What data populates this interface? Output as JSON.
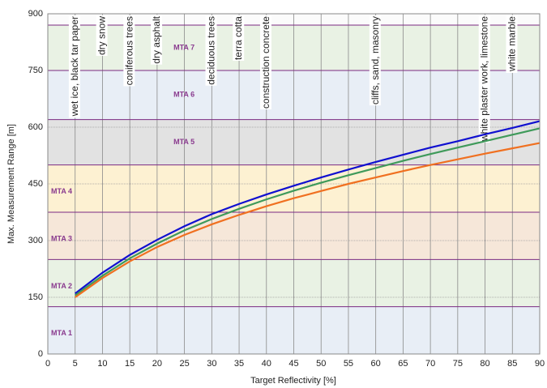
{
  "chart_data": {
    "type": "line",
    "x_label": "Target Reflectivity [%]",
    "y_label": "Max. Measurement Range [m]",
    "x": [
      5,
      10,
      15,
      20,
      25,
      30,
      35,
      40,
      45,
      50,
      55,
      60,
      65,
      70,
      75,
      80,
      85,
      90
    ],
    "series": [
      {
        "color": "#1010d0",
        "values": [
          160,
          215,
          262,
          302,
          338,
          370,
          397,
          422,
          445,
          467,
          488,
          508,
          527,
          546,
          563,
          581,
          598,
          616
        ]
      },
      {
        "color": "#3f9a5a",
        "values": [
          155,
          207,
          253,
          292,
          327,
          357,
          384,
          409,
          432,
          453,
          473,
          492,
          511,
          529,
          546,
          563,
          580,
          597
        ]
      },
      {
        "color": "#f07020",
        "values": [
          150,
          201,
          245,
          283,
          315,
          343,
          368,
          391,
          412,
          431,
          450,
          467,
          484,
          500,
          515,
          530,
          544,
          558
        ]
      }
    ],
    "xlim": [
      0,
      90
    ],
    "ylim": [
      0,
      900
    ],
    "xticks": [
      0,
      5,
      10,
      15,
      20,
      25,
      30,
      35,
      40,
      45,
      50,
      55,
      60,
      65,
      70,
      75,
      80,
      85,
      90
    ],
    "yticks": [
      0,
      150,
      300,
      450,
      600,
      750,
      900
    ],
    "grid": true,
    "zones": [
      {
        "label": "MTA 1",
        "range": [
          0,
          125
        ],
        "color": "#e8eef6"
      },
      {
        "label": "MTA 2",
        "range": [
          125,
          250
        ],
        "color": "#e9f2e4"
      },
      {
        "label": "MTA 3",
        "range": [
          250,
          375
        ],
        "color": "#f6e7d9"
      },
      {
        "label": "MTA 4",
        "range": [
          375,
          500
        ],
        "color": "#fdf1d2"
      },
      {
        "label": "MTA 5",
        "range": [
          500,
          620
        ],
        "color": "#e2e2e2"
      },
      {
        "label": "MTA 6",
        "range": [
          620,
          750
        ],
        "color": "#e8eef6"
      },
      {
        "label": "MTA 7",
        "range": [
          750,
          870
        ],
        "color": "#e9f2e4"
      }
    ],
    "materials": [
      {
        "x": 5,
        "label": "wet  ice, black tar paper"
      },
      {
        "x": 10,
        "label": "dry snow"
      },
      {
        "x": 15,
        "label": "coniferous trees"
      },
      {
        "x": 20,
        "label": "dry asphalt"
      },
      {
        "x": 30,
        "label": "deciduous trees"
      },
      {
        "x": 35,
        "label": "terra cotta"
      },
      {
        "x": 40,
        "label": "construction concrete"
      },
      {
        "x": 60,
        "label": "cliffs, sand, masonry"
      },
      {
        "x": 80,
        "label": "white plaster work, limestone"
      },
      {
        "x": 85,
        "label": "white marble"
      }
    ]
  }
}
